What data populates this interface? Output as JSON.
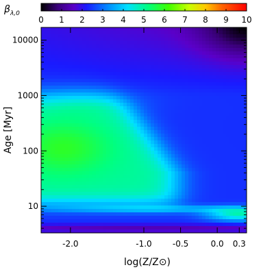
{
  "chart_data": {
    "type": "heatmap",
    "title": "",
    "xlabel": "log(Z/Z⊙)",
    "ylabel": "Age [Myr]",
    "colorbar": {
      "label": "β",
      "label_sub": "λ,0",
      "range": [
        0,
        10
      ],
      "ticks": [
        "0",
        "1",
        "2",
        "3",
        "4",
        "5",
        "6",
        "7",
        "8",
        "9",
        "10"
      ],
      "tick_values": [
        0,
        1,
        2,
        3,
        4,
        5,
        6,
        7,
        8,
        9,
        10
      ],
      "colormap": [
        "#000000",
        "#7a00b8",
        "#1010ff",
        "#00c8ff",
        "#00ff70",
        "#c8ff00",
        "#ff8000",
        "#ff0000"
      ]
    },
    "x_axis": {
      "scale": "linear",
      "range": [
        -2.4,
        0.4
      ],
      "ticks": [
        "-2.0",
        "-1.0",
        "-0.5",
        "0.0",
        "0.3"
      ],
      "tick_values": [
        -2.0,
        -1.0,
        -0.5,
        0.0,
        0.3
      ]
    },
    "y_axis": {
      "scale": "log",
      "range": [
        3.3,
        17000
      ],
      "ticks": [
        "10",
        "100",
        "1000",
        "10000"
      ],
      "tick_values": [
        10,
        100,
        1000,
        10000
      ]
    },
    "field_description_points": [
      {
        "logZ": -2.0,
        "age": 100,
        "beta": 5.6
      },
      {
        "logZ": -1.0,
        "age": 30,
        "beta": 4.8
      },
      {
        "logZ": -0.5,
        "age": 300,
        "beta": 2.6
      },
      {
        "logZ": 0.3,
        "age": 6,
        "beta": 5.0
      },
      {
        "logZ": 0.3,
        "age": 12000,
        "beta": 0.4
      },
      {
        "logZ": -2.0,
        "age": 4,
        "beta": 1.2
      }
    ]
  }
}
